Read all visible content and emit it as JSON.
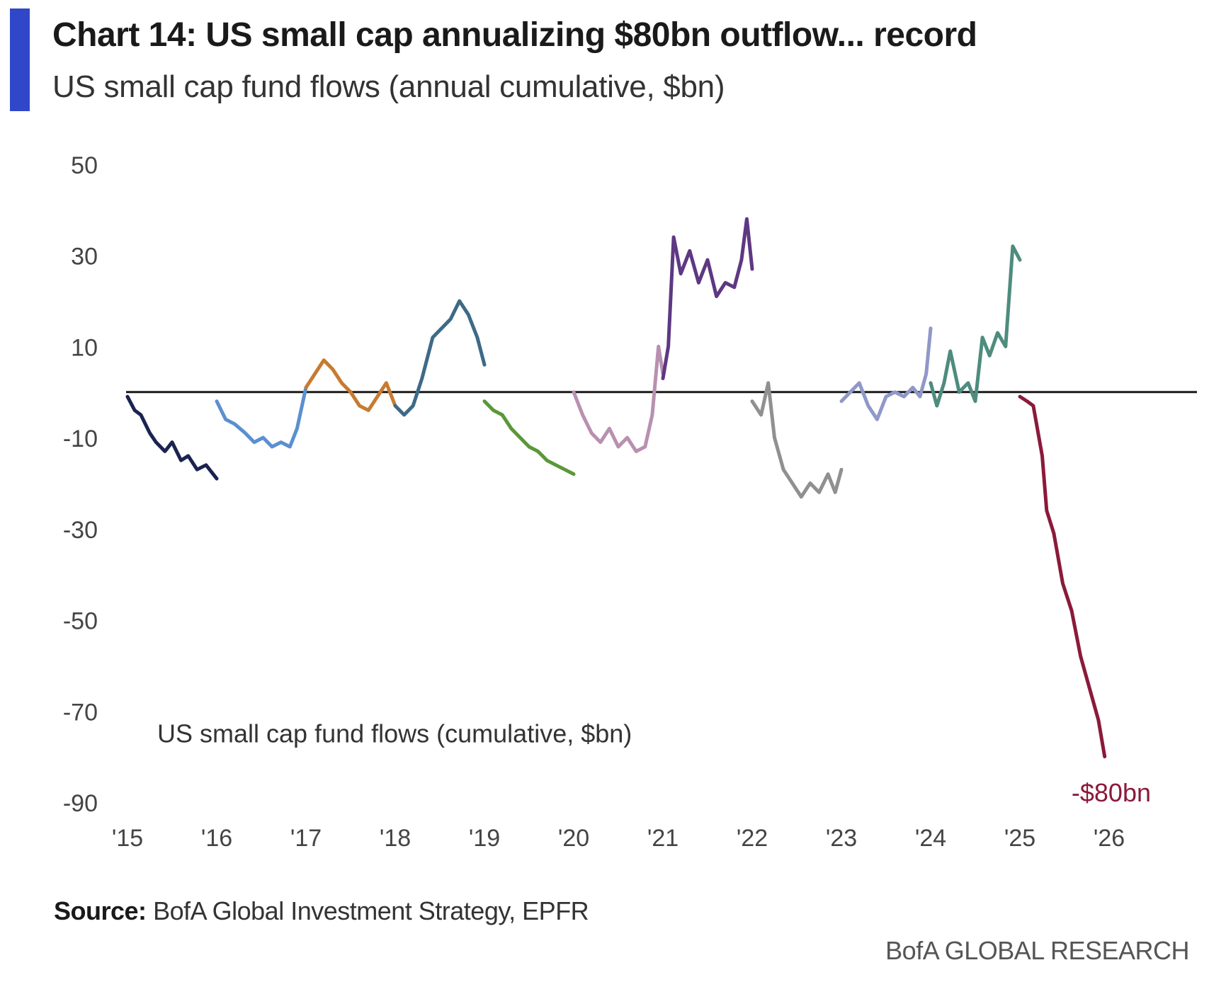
{
  "header": {
    "title": "Chart 14: US small cap annualizing $80bn outflow... record",
    "subtitle": "US small cap fund flows (annual cumulative, $bn)"
  },
  "footer": {
    "source_label": "Source:",
    "source_text": "BofA Global Investment Strategy, EPFR",
    "brand": "BofA GLOBAL RESEARCH"
  },
  "colors": {
    "accent": "#2f47c8",
    "zero_line": "#1a1a1a",
    "annotation": "#8b1a3a"
  },
  "chart_data": {
    "type": "line",
    "title": "US small cap fund flows (annual cumulative, $bn)",
    "xlabel": "",
    "ylabel": "",
    "ylim": [
      -90,
      50
    ],
    "xlim": [
      2015,
      2026
    ],
    "y_ticks": [
      50,
      30,
      10,
      -10,
      -30,
      -50,
      -70,
      -90
    ],
    "x_ticks": [
      2015,
      2016,
      2017,
      2018,
      2019,
      2020,
      2021,
      2022,
      2023,
      2024,
      2025,
      2026
    ],
    "x_tick_labels": [
      "'15",
      "'16",
      "'17",
      "'18",
      "'19",
      "'20",
      "'21",
      "'22",
      "'23",
      "'24",
      "'25",
      "'26"
    ],
    "reference_line": 0,
    "grid": false,
    "inner_label": "US small cap fund flows (cumulative, $bn)",
    "annotation": "-$80bn",
    "series": [
      {
        "name": "2015",
        "color": "#1b2350",
        "x": [
          2015.0,
          2015.08,
          2015.15,
          2015.25,
          2015.32,
          2015.42,
          2015.5,
          2015.6,
          2015.68,
          2015.78,
          2015.88,
          2016.0
        ],
        "y": [
          -1,
          -4,
          -5,
          -9,
          -11,
          -13,
          -11,
          -15,
          -14,
          -17,
          -16,
          -19
        ]
      },
      {
        "name": "2016",
        "color": "#5b8fd0",
        "x": [
          2016.0,
          2016.1,
          2016.2,
          2016.32,
          2016.42,
          2016.52,
          2016.62,
          2016.72,
          2016.82,
          2016.9,
          2017.0
        ],
        "y": [
          -2,
          -6,
          -7,
          -9,
          -11,
          -10,
          -12,
          -11,
          -12,
          -8,
          1
        ]
      },
      {
        "name": "2017",
        "color": "#c87a30",
        "x": [
          2017.0,
          2017.1,
          2017.2,
          2017.3,
          2017.4,
          2017.5,
          2017.6,
          2017.7,
          2017.8,
          2017.9,
          2018.0
        ],
        "y": [
          1,
          4,
          7,
          5,
          2,
          0,
          -3,
          -4,
          -1,
          2,
          -3
        ]
      },
      {
        "name": "2018",
        "color": "#3d6a87",
        "x": [
          2018.0,
          2018.1,
          2018.2,
          2018.3,
          2018.42,
          2018.52,
          2018.62,
          2018.72,
          2018.82,
          2018.92,
          2019.0
        ],
        "y": [
          -3,
          -5,
          -3,
          3,
          12,
          14,
          16,
          20,
          17,
          12,
          6
        ]
      },
      {
        "name": "2019",
        "color": "#5a9838",
        "x": [
          2019.0,
          2019.1,
          2019.2,
          2019.3,
          2019.4,
          2019.5,
          2019.6,
          2019.7,
          2019.8,
          2019.9,
          2020.0
        ],
        "y": [
          -2,
          -4,
          -5,
          -8,
          -10,
          -12,
          -13,
          -15,
          -16,
          -17,
          -18
        ]
      },
      {
        "name": "2020",
        "color": "#b890b0",
        "x": [
          2020.0,
          2020.1,
          2020.2,
          2020.3,
          2020.4,
          2020.5,
          2020.6,
          2020.7,
          2020.8,
          2020.88,
          2020.95,
          2021.0
        ],
        "y": [
          0,
          -5,
          -9,
          -11,
          -8,
          -12,
          -10,
          -13,
          -12,
          -5,
          10,
          4
        ]
      },
      {
        "name": "2021",
        "color": "#5e3882",
        "x": [
          2021.0,
          2021.06,
          2021.12,
          2021.2,
          2021.3,
          2021.4,
          2021.5,
          2021.6,
          2021.7,
          2021.8,
          2021.88,
          2021.94,
          2022.0
        ],
        "y": [
          3,
          10,
          34,
          26,
          31,
          24,
          29,
          21,
          24,
          23,
          29,
          38,
          27
        ]
      },
      {
        "name": "2022",
        "color": "#909090",
        "x": [
          2022.0,
          2022.1,
          2022.18,
          2022.25,
          2022.35,
          2022.45,
          2022.55,
          2022.65,
          2022.75,
          2022.85,
          2022.93,
          2023.0
        ],
        "y": [
          -2,
          -5,
          2,
          -10,
          -17,
          -20,
          -23,
          -20,
          -22,
          -18,
          -22,
          -17
        ]
      },
      {
        "name": "2023",
        "color": "#8f98c8",
        "x": [
          2023.0,
          2023.1,
          2023.2,
          2023.3,
          2023.4,
          2023.5,
          2023.6,
          2023.7,
          2023.8,
          2023.88,
          2023.95,
          2024.0
        ],
        "y": [
          -2,
          0,
          2,
          -3,
          -6,
          -1,
          0,
          -1,
          1,
          -1,
          4,
          14
        ]
      },
      {
        "name": "2024",
        "color": "#4e8c7e",
        "x": [
          2024.0,
          2024.07,
          2024.15,
          2024.22,
          2024.32,
          2024.42,
          2024.5,
          2024.58,
          2024.66,
          2024.75,
          2024.84,
          2024.92,
          2025.0
        ],
        "y": [
          2,
          -3,
          2,
          9,
          0,
          2,
          -2,
          12,
          8,
          13,
          10,
          32,
          29
        ]
      },
      {
        "name": "2025",
        "color": "#8b1a3a",
        "x": [
          2025.0,
          2025.08,
          2025.15,
          2025.25,
          2025.3,
          2025.38,
          2025.48,
          2025.58,
          2025.68,
          2025.78,
          2025.88,
          2025.95
        ],
        "y": [
          -1,
          -2,
          -3,
          -14,
          -26,
          -31,
          -42,
          -48,
          -58,
          -65,
          -72,
          -80
        ]
      }
    ]
  }
}
